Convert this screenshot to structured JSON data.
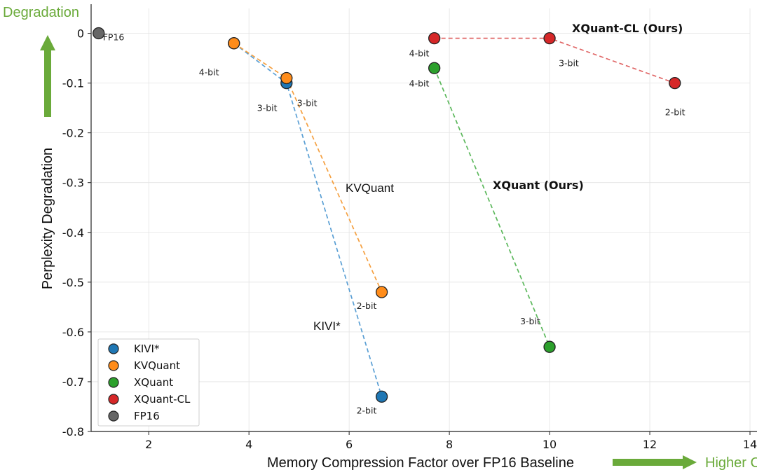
{
  "chart_data": {
    "type": "scatter",
    "xlabel": "Memory Compression Factor over FP16 Baseline",
    "ylabel": "Perplexity Degradation",
    "xlim": [
      0.85,
      14
    ],
    "ylim": [
      -0.8,
      0.05
    ],
    "xticks": [
      2,
      4,
      6,
      8,
      10,
      12,
      14
    ],
    "yticks": [
      0,
      -0.1,
      -0.2,
      -0.3,
      -0.4,
      -0.5,
      -0.6,
      -0.7,
      -0.8
    ],
    "ytick_labels": [
      "0",
      "-0.1",
      "-0.2",
      "-0.3",
      "-0.4",
      "-0.5",
      "-0.6",
      "-0.7",
      "-0.8"
    ],
    "grid": true,
    "legend_position": "bottom-left",
    "arrows": {
      "y_label": "Degradation",
      "x_label": "Higher C"
    },
    "series": [
      {
        "name": "KIVI*",
        "color": "#1f77b4",
        "line_color": "#5a9fd4",
        "inline_label": "KIVI*",
        "points": [
          {
            "x": 3.7,
            "y": -0.02,
            "label": ""
          },
          {
            "x": 4.75,
            "y": -0.1,
            "label": "3-bit"
          },
          {
            "x": 6.65,
            "y": -0.73,
            "label": "2-bit"
          }
        ]
      },
      {
        "name": "KVQuant",
        "color": "#ff8c1a",
        "line_color": "#f5a040",
        "inline_label": "KVQuant",
        "points": [
          {
            "x": 3.7,
            "y": -0.02,
            "label": "4-bit"
          },
          {
            "x": 4.75,
            "y": -0.09,
            "label": "3-bit"
          },
          {
            "x": 6.65,
            "y": -0.52,
            "label": "2-bit"
          }
        ]
      },
      {
        "name": "XQuant",
        "color": "#2ca02c",
        "line_color": "#5cb85c",
        "inline_label": "XQuant (Ours)",
        "points": [
          {
            "x": 7.7,
            "y": -0.07,
            "label": "4-bit"
          },
          {
            "x": 10,
            "y": -0.63,
            "label": "3-bit"
          }
        ]
      },
      {
        "name": "XQuant-CL",
        "color": "#d62728",
        "line_color": "#e06666",
        "inline_label": "XQuant-CL (Ours)",
        "points": [
          {
            "x": 7.7,
            "y": -0.01,
            "label": "4-bit"
          },
          {
            "x": 10,
            "y": -0.01,
            "label": "3-bit"
          },
          {
            "x": 12.5,
            "y": -0.1,
            "label": "2-bit"
          }
        ]
      },
      {
        "name": "FP16",
        "color": "#666666",
        "line_color": "#666666",
        "inline_label": "",
        "points": [
          {
            "x": 1,
            "y": 0,
            "label": "FP16"
          }
        ]
      }
    ]
  }
}
